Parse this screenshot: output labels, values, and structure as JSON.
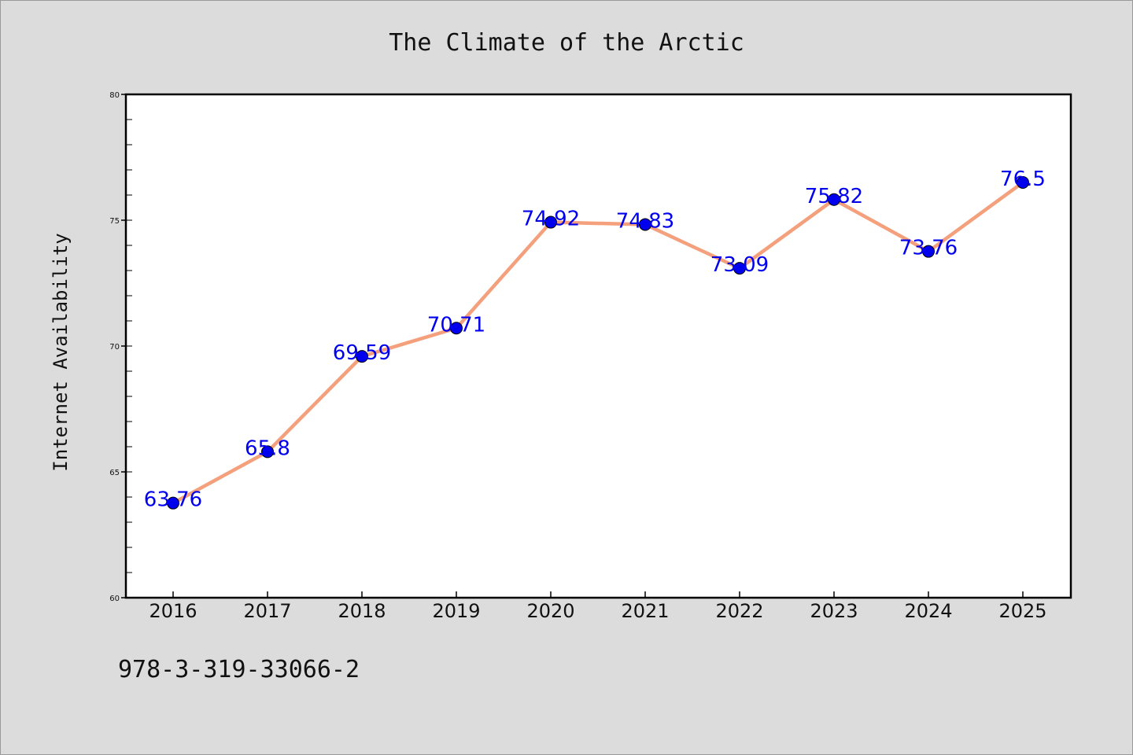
{
  "chart_data": {
    "type": "line",
    "title": "The Climate of the Arctic",
    "xlabel": "",
    "ylabel": "Internet Availability",
    "categories": [
      "2016",
      "2017",
      "2018",
      "2019",
      "2020",
      "2021",
      "2022",
      "2023",
      "2024",
      "2025"
    ],
    "series": [
      {
        "values": [
          63.76,
          65.8,
          69.59,
          70.71,
          74.92,
          74.83,
          73.09,
          75.82,
          73.76,
          76.5
        ],
        "labels": [
          "63.76",
          "65.8",
          "69.59",
          "70.71",
          "74.92",
          "74.83",
          "73.09",
          "75.82",
          "73.76",
          "76.5"
        ],
        "line_color": "#f4a07c",
        "marker_color": "#0000ee",
        "label_color": "#0000ee"
      }
    ],
    "ylim": [
      60,
      80
    ],
    "yticks": [
      "60",
      "65",
      "70",
      "75",
      "80"
    ],
    "grid": false,
    "legend": "none"
  },
  "footer": {
    "isbn": "978-3-319-33066-2"
  },
  "colors": {
    "background": "#dcdcdc",
    "plot_background": "#ffffff"
  }
}
